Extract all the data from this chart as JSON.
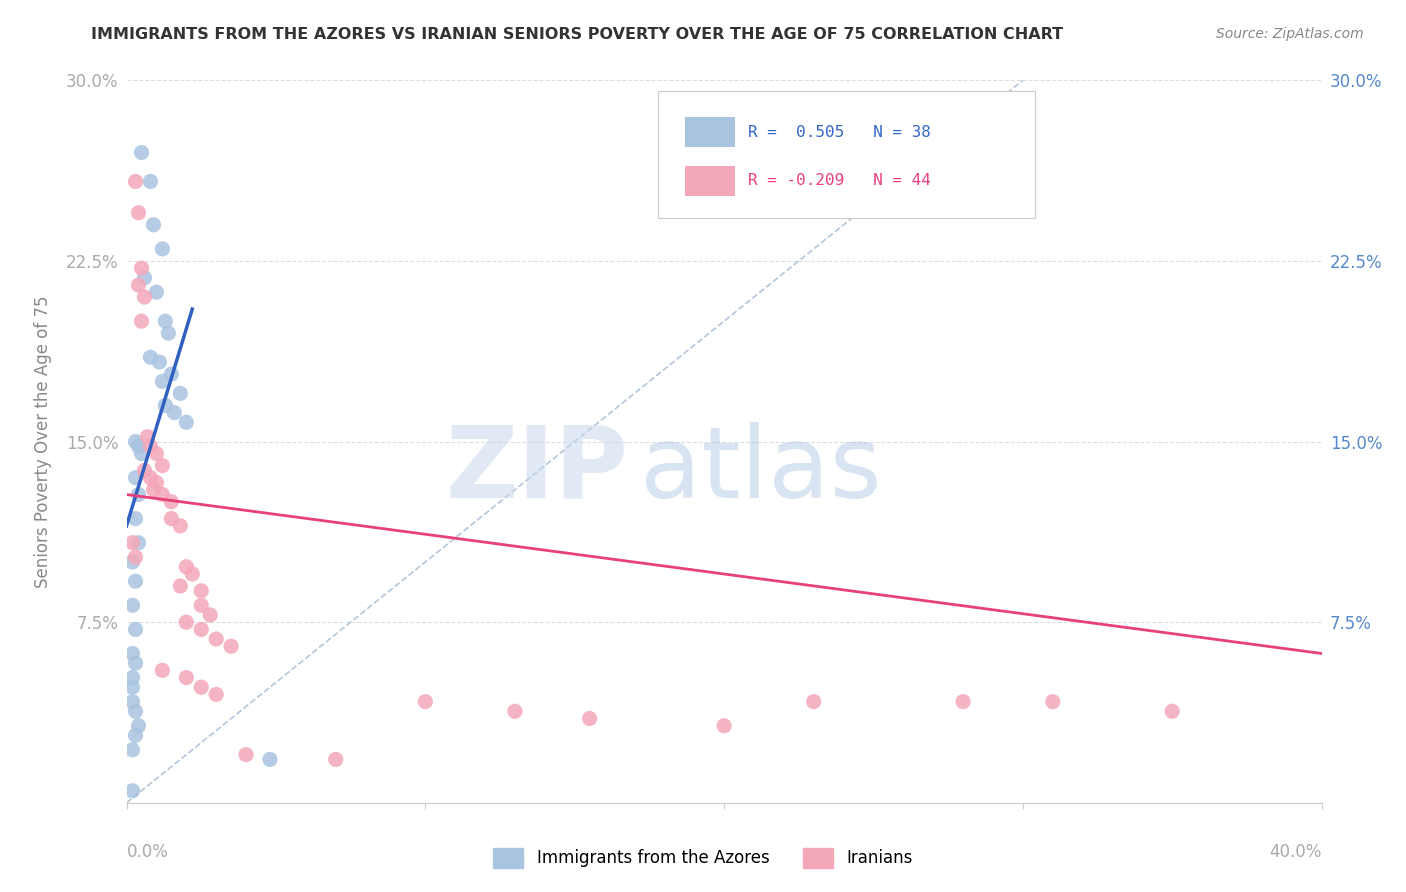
{
  "title": "IMMIGRANTS FROM THE AZORES VS IRANIAN SENIORS POVERTY OVER THE AGE OF 75 CORRELATION CHART",
  "source": "Source: ZipAtlas.com",
  "ylabel": "Seniors Poverty Over the Age of 75",
  "yticks": [
    0.0,
    0.075,
    0.15,
    0.225,
    0.3
  ],
  "ytick_labels": [
    "",
    "7.5%",
    "15.0%",
    "22.5%",
    "30.0%"
  ],
  "xlim": [
    0.0,
    0.4
  ],
  "ylim": [
    0.0,
    0.3
  ],
  "color_azores": "#a8c4e0",
  "color_iranian": "#f4a7b9",
  "trendline_azores_color": "#3060c0",
  "trendline_iranian_color": "#e8407a",
  "watermark_zip": "ZIP",
  "watermark_atlas": "atlas",
  "azores_points": [
    [
      0.005,
      0.27
    ],
    [
      0.008,
      0.258
    ],
    [
      0.009,
      0.24
    ],
    [
      0.012,
      0.23
    ],
    [
      0.006,
      0.218
    ],
    [
      0.01,
      0.212
    ],
    [
      0.013,
      0.2
    ],
    [
      0.014,
      0.195
    ],
    [
      0.008,
      0.185
    ],
    [
      0.011,
      0.183
    ],
    [
      0.015,
      0.178
    ],
    [
      0.012,
      0.175
    ],
    [
      0.018,
      0.17
    ],
    [
      0.013,
      0.165
    ],
    [
      0.016,
      0.162
    ],
    [
      0.02,
      0.158
    ],
    [
      0.003,
      0.15
    ],
    [
      0.004,
      0.148
    ],
    [
      0.005,
      0.145
    ],
    [
      0.003,
      0.135
    ],
    [
      0.004,
      0.128
    ],
    [
      0.003,
      0.118
    ],
    [
      0.004,
      0.108
    ],
    [
      0.002,
      0.1
    ],
    [
      0.003,
      0.092
    ],
    [
      0.002,
      0.082
    ],
    [
      0.003,
      0.072
    ],
    [
      0.002,
      0.062
    ],
    [
      0.003,
      0.058
    ],
    [
      0.002,
      0.052
    ],
    [
      0.002,
      0.048
    ],
    [
      0.002,
      0.042
    ],
    [
      0.003,
      0.038
    ],
    [
      0.004,
      0.032
    ],
    [
      0.003,
      0.028
    ],
    [
      0.002,
      0.022
    ],
    [
      0.048,
      0.018
    ],
    [
      0.002,
      0.005
    ]
  ],
  "iranian_points": [
    [
      0.003,
      0.258
    ],
    [
      0.004,
      0.245
    ],
    [
      0.005,
      0.222
    ],
    [
      0.004,
      0.215
    ],
    [
      0.006,
      0.21
    ],
    [
      0.005,
      0.2
    ],
    [
      0.007,
      0.152
    ],
    [
      0.008,
      0.148
    ],
    [
      0.01,
      0.145
    ],
    [
      0.012,
      0.14
    ],
    [
      0.006,
      0.138
    ],
    [
      0.008,
      0.135
    ],
    [
      0.01,
      0.133
    ],
    [
      0.009,
      0.13
    ],
    [
      0.012,
      0.128
    ],
    [
      0.015,
      0.125
    ],
    [
      0.015,
      0.118
    ],
    [
      0.018,
      0.115
    ],
    [
      0.002,
      0.108
    ],
    [
      0.003,
      0.102
    ],
    [
      0.02,
      0.098
    ],
    [
      0.022,
      0.095
    ],
    [
      0.018,
      0.09
    ],
    [
      0.025,
      0.088
    ],
    [
      0.025,
      0.082
    ],
    [
      0.028,
      0.078
    ],
    [
      0.02,
      0.075
    ],
    [
      0.025,
      0.072
    ],
    [
      0.03,
      0.068
    ],
    [
      0.035,
      0.065
    ],
    [
      0.012,
      0.055
    ],
    [
      0.02,
      0.052
    ],
    [
      0.025,
      0.048
    ],
    [
      0.03,
      0.045
    ],
    [
      0.1,
      0.042
    ],
    [
      0.13,
      0.038
    ],
    [
      0.155,
      0.035
    ],
    [
      0.2,
      0.032
    ],
    [
      0.23,
      0.042
    ],
    [
      0.28,
      0.042
    ],
    [
      0.31,
      0.042
    ],
    [
      0.35,
      0.038
    ],
    [
      0.04,
      0.02
    ],
    [
      0.07,
      0.018
    ]
  ],
  "azores_trendline": [
    [
      0.0,
      0.115
    ],
    [
      0.022,
      0.205
    ]
  ],
  "iranian_trendline": [
    [
      0.0,
      0.128
    ],
    [
      0.4,
      0.062
    ]
  ],
  "diag_line": [
    [
      0.0,
      0.0
    ],
    [
      0.3,
      0.3
    ]
  ]
}
